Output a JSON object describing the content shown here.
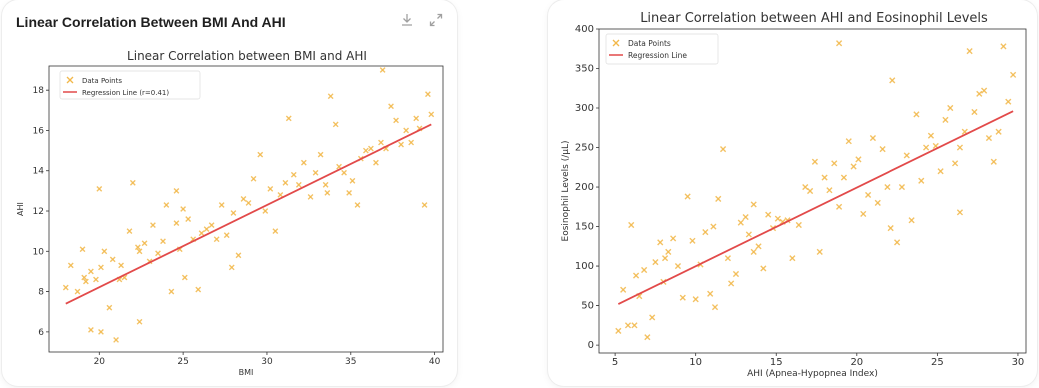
{
  "left_card": {
    "title": "Linear Correlation Between BMI And AHI",
    "actions": [
      {
        "name": "download-icon"
      },
      {
        "name": "expand-icon"
      }
    ]
  },
  "chart_data": [
    {
      "type": "scatter",
      "title": "Linear Correlation between BMI and AHI",
      "xlabel": "BMI",
      "ylabel": "AHI",
      "xlim": [
        17,
        40.5
      ],
      "ylim": [
        5,
        19.2
      ],
      "xticks": [
        20,
        25,
        30,
        35,
        40
      ],
      "yticks": [
        6,
        8,
        10,
        12,
        14,
        16,
        18
      ],
      "grid": false,
      "legend_position": "upper-left",
      "colors": {
        "points": "#f2b84a",
        "line": "#e24a4a"
      },
      "series": [
        {
          "name": "Data Points",
          "kind": "points",
          "x": [
            18.0,
            18.3,
            18.7,
            19.0,
            19.2,
            19.5,
            19.5,
            19.8,
            20.0,
            20.1,
            20.3,
            20.6,
            20.8,
            21.0,
            21.3,
            21.5,
            21.8,
            22.0,
            22.3,
            22.4,
            22.7,
            23.0,
            23.2,
            23.5,
            23.8,
            24.0,
            24.3,
            24.6,
            24.8,
            25.0,
            25.1,
            25.3,
            25.6,
            25.9,
            26.1,
            26.4,
            26.7,
            27.0,
            27.3,
            27.6,
            28.0,
            28.3,
            28.6,
            28.9,
            29.2,
            29.6,
            29.9,
            30.2,
            30.5,
            30.8,
            31.1,
            31.3,
            31.6,
            31.9,
            32.2,
            32.6,
            32.9,
            33.2,
            33.5,
            33.8,
            34.1,
            34.3,
            34.6,
            34.9,
            35.1,
            35.4,
            35.6,
            35.9,
            36.2,
            36.5,
            36.8,
            37.1,
            37.4,
            37.7,
            38.0,
            38.3,
            38.6,
            38.9,
            39.1,
            39.4,
            39.6,
            39.8,
            20.1,
            21.2,
            22.4,
            24.6,
            27.9,
            33.6,
            36.9,
            19.1
          ],
          "y": [
            8.2,
            9.3,
            8.0,
            10.1,
            8.5,
            9.0,
            6.1,
            8.6,
            13.1,
            9.2,
            10.0,
            7.2,
            9.6,
            5.6,
            9.3,
            8.7,
            11.0,
            13.4,
            10.2,
            6.5,
            10.4,
            9.5,
            11.3,
            9.9,
            10.5,
            12.3,
            8.0,
            13.0,
            10.1,
            12.1,
            8.7,
            11.6,
            10.6,
            8.1,
            10.9,
            11.1,
            11.3,
            10.6,
            12.3,
            10.8,
            11.9,
            9.8,
            12.6,
            12.4,
            13.6,
            14.8,
            12.0,
            13.1,
            11.0,
            12.8,
            13.4,
            16.6,
            13.8,
            13.3,
            14.4,
            12.7,
            13.9,
            14.8,
            13.3,
            17.7,
            16.3,
            14.2,
            13.9,
            12.9,
            13.5,
            12.3,
            14.6,
            15.0,
            15.1,
            14.4,
            15.4,
            15.1,
            17.2,
            16.5,
            15.3,
            16.0,
            15.4,
            16.6,
            16.1,
            12.3,
            17.8,
            16.8,
            6.0,
            8.6,
            10.0,
            11.4,
            9.2,
            12.9,
            19.0,
            8.7
          ]
        },
        {
          "name": "Regression Line (r=0.41)",
          "kind": "line",
          "x": [
            18,
            39.8
          ],
          "y": [
            7.4,
            16.3
          ]
        }
      ]
    },
    {
      "type": "scatter",
      "title": "Linear Correlation between AHI and Eosinophil Levels",
      "xlabel": "AHI (Apnea-Hypopnea Index)",
      "ylabel": "Eosinophil Levels (/μL)",
      "xlim": [
        4,
        30.5
      ],
      "ylim": [
        -10,
        400
      ],
      "xticks": [
        5,
        10,
        15,
        20,
        25,
        30
      ],
      "yticks": [
        0,
        50,
        100,
        150,
        200,
        250,
        300,
        350,
        400
      ],
      "grid": false,
      "legend_position": "upper-left",
      "colors": {
        "points": "#f2b84a",
        "line": "#e24a4a"
      },
      "series": [
        {
          "name": "Data Points",
          "kind": "points",
          "x": [
            5.2,
            5.5,
            5.8,
            6.0,
            6.3,
            6.5,
            6.8,
            7.0,
            7.3,
            7.5,
            7.8,
            8.0,
            8.3,
            8.6,
            8.9,
            9.2,
            9.5,
            9.8,
            10.0,
            10.3,
            10.6,
            10.9,
            11.1,
            11.4,
            11.7,
            12.0,
            12.2,
            12.5,
            12.8,
            13.1,
            13.3,
            13.6,
            13.9,
            14.2,
            14.5,
            14.8,
            15.1,
            15.4,
            15.7,
            16.0,
            16.4,
            16.8,
            17.1,
            17.4,
            17.7,
            18.0,
            18.3,
            18.6,
            18.9,
            19.2,
            19.5,
            19.8,
            20.1,
            20.4,
            20.7,
            21.0,
            21.3,
            21.6,
            21.9,
            22.2,
            22.5,
            22.8,
            23.1,
            23.4,
            23.7,
            24.0,
            24.3,
            24.6,
            24.9,
            25.2,
            25.5,
            25.8,
            26.1,
            26.4,
            26.7,
            27.0,
            27.3,
            27.6,
            27.9,
            28.2,
            28.5,
            28.8,
            29.1,
            29.4,
            29.7,
            18.9,
            22.1,
            11.2,
            26.4,
            6.2,
            8.1,
            13.6
          ],
          "y": [
            18,
            70,
            25,
            152,
            88,
            62,
            95,
            10,
            35,
            105,
            130,
            80,
            118,
            135,
            100,
            60,
            188,
            132,
            58,
            102,
            143,
            65,
            150,
            185,
            248,
            110,
            78,
            90,
            155,
            162,
            140,
            118,
            125,
            97,
            165,
            148,
            160,
            156,
            158,
            110,
            152,
            200,
            195,
            232,
            118,
            212,
            196,
            230,
            382,
            212,
            258,
            226,
            235,
            166,
            190,
            262,
            180,
            248,
            200,
            335,
            130,
            200,
            240,
            158,
            292,
            208,
            250,
            265,
            252,
            220,
            285,
            300,
            230,
            250,
            270,
            372,
            295,
            318,
            322,
            262,
            232,
            270,
            378,
            308,
            342,
            175,
            148,
            48,
            168,
            25,
            110,
            178
          ]
        },
        {
          "name": "Regression Line",
          "kind": "line",
          "x": [
            5.2,
            29.7
          ],
          "y": [
            52,
            296
          ]
        }
      ]
    }
  ]
}
